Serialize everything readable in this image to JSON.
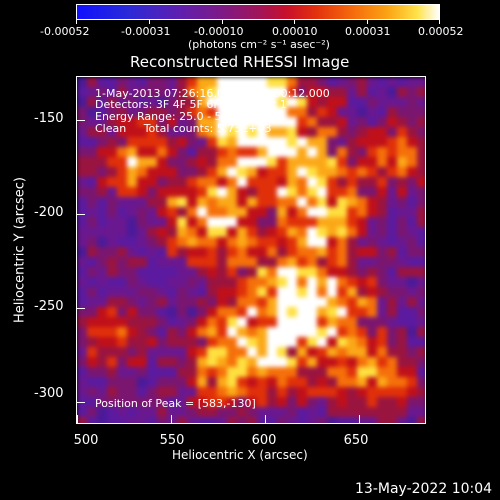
{
  "colorbar": {
    "tick_labels": [
      "-0.00052",
      "-0.00031",
      "-0.00010",
      "0.00010",
      "0.00031",
      "0.00052"
    ],
    "unit_label": "(photons cm⁻² s⁻¹ asec⁻²)"
  },
  "title": "Reconstructed RHESSI Image",
  "annotations": {
    "time_range": "1-May-2013 07:26:16.000 to 07:30:12.000",
    "detectors": "Detectors: 3F 4F 5F 6F 7F 8F, Att 1",
    "energy": "Energy Range: 25.0 - 50.0 keV",
    "clean": "Clean     Total counts: 5.73E+03",
    "peak": "Position of Peak = [583,-130]"
  },
  "axes": {
    "x_label": "Heliocentric X (arcsec)",
    "y_label": "Heliocentric Y (arcsec)",
    "x_ticks": [
      "500",
      "550",
      "600",
      "650"
    ],
    "y_ticks": [
      "-150",
      "-200",
      "-250",
      "-300"
    ]
  },
  "footer": {
    "date": "13-May-2022 10:04"
  }
}
